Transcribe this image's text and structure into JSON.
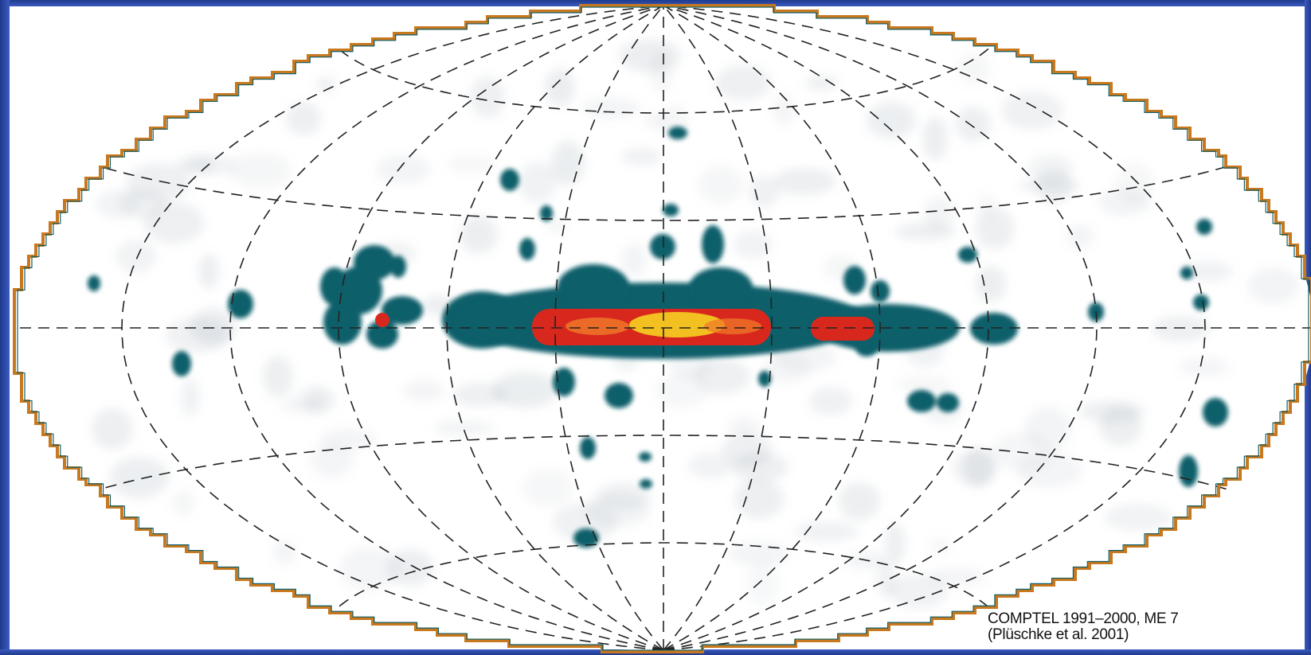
{
  "figure": {
    "caption_line1": "COMPTEL 1991–2000, ME 7",
    "caption_line2": "(Plüschke et al. 2001)"
  },
  "colors": {
    "frame": "#2b4aa8",
    "sky_background": "#ffffff",
    "outline": "#c8781e",
    "grid": "#222222",
    "emission_low": "#0f5f6a",
    "emission_mid": "#d8281e",
    "emission_high": "#f5d020"
  },
  "map": {
    "projection": "Aitoff",
    "grid": "dashed"
  }
}
